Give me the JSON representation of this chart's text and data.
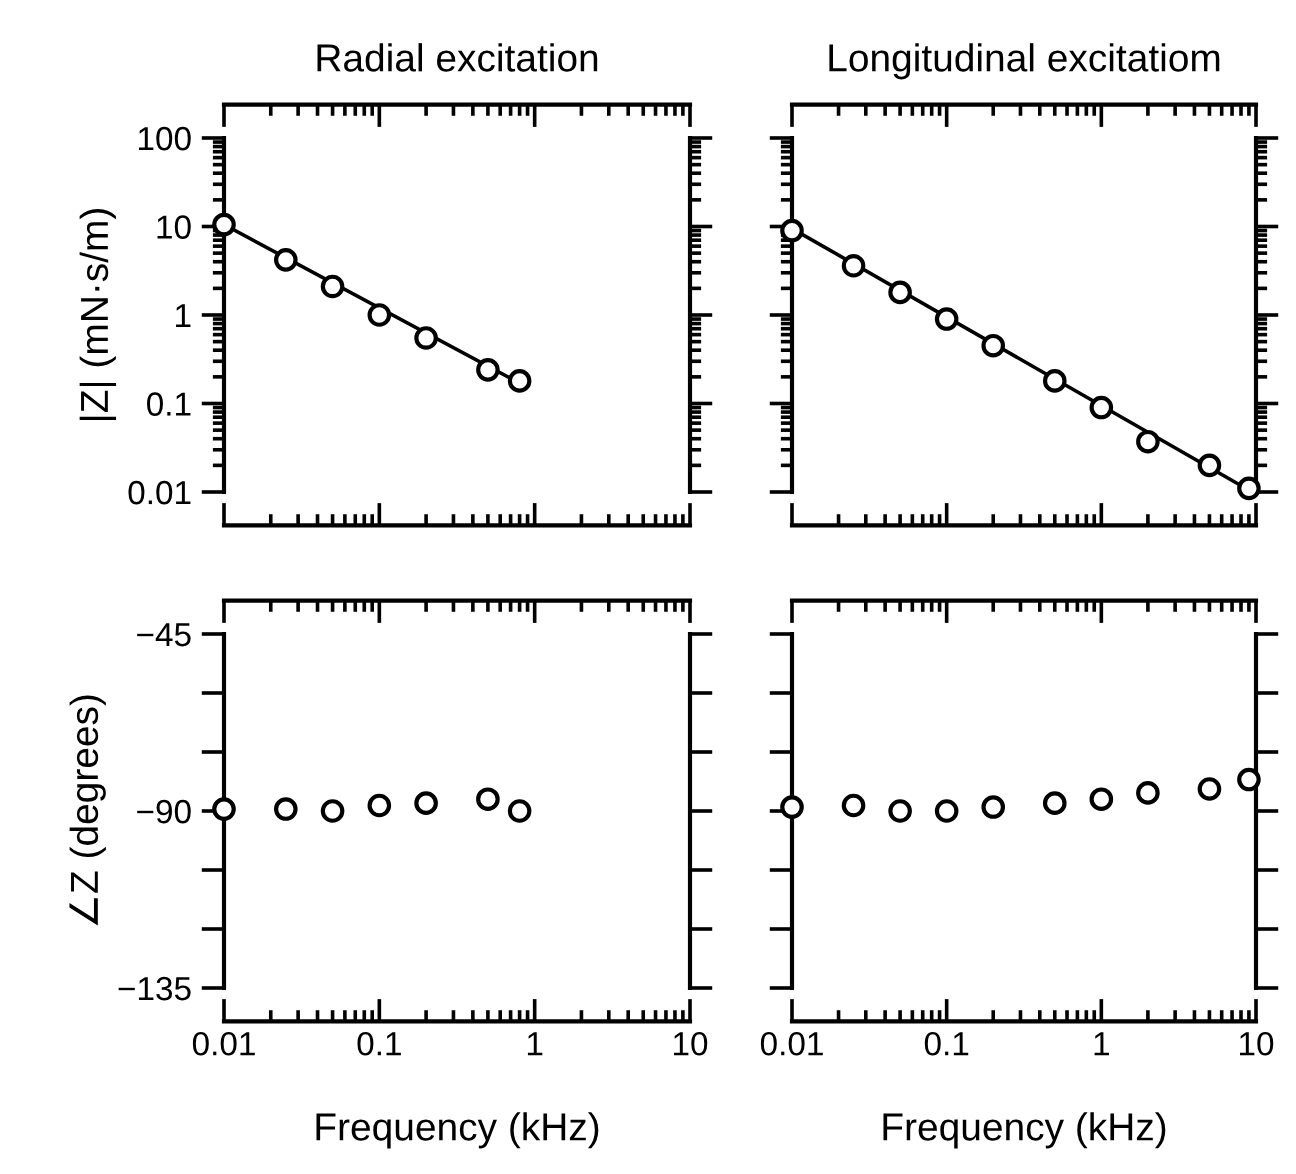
{
  "chart_data": [
    {
      "type": "scatter",
      "title": "Radial excitation",
      "ylabel": "|Z| (mN·s/m)",
      "log": "xy",
      "marker": "circle",
      "tick_labels": "y",
      "xlim": [
        0.01,
        10
      ],
      "xticks": [
        0.01,
        0.1,
        1,
        10
      ],
      "ylim": [
        0.01,
        100
      ],
      "yticks": [
        0.01,
        0.1,
        1,
        10,
        100
      ],
      "series": [
        {
          "type": "scatter",
          "color": "#000000",
          "x": [
            0.01,
            0.025,
            0.05,
            0.1,
            0.2,
            0.5,
            0.8
          ],
          "values": [
            10.5,
            4.2,
            2.1,
            1.0,
            0.55,
            0.24,
            0.18
          ]
        },
        {
          "type": "line",
          "marker": "none",
          "color": "#000000",
          "x": [
            0.01,
            0.8
          ],
          "values": [
            10.5,
            0.17
          ]
        }
      ]
    },
    {
      "type": "scatter",
      "title": "Longitudinal excitatiom",
      "log": "xy",
      "marker": "circle",
      "tick_labels": false,
      "xlim": [
        0.01,
        10
      ],
      "xticks": [
        0.01,
        0.1,
        1,
        10
      ],
      "ylim": [
        0.01,
        100
      ],
      "yticks": [
        0.01,
        0.1,
        1,
        10,
        100
      ],
      "series": [
        {
          "type": "scatter",
          "color": "#000000",
          "x": [
            0.01,
            0.025,
            0.05,
            0.1,
            0.2,
            0.5,
            1,
            2,
            5,
            9
          ],
          "values": [
            9,
            3.6,
            1.8,
            0.9,
            0.45,
            0.18,
            0.09,
            0.037,
            0.02,
            0.011
          ]
        },
        {
          "type": "line",
          "marker": "none",
          "color": "#000000",
          "x": [
            0.01,
            9
          ],
          "values": [
            9.5,
            0.0105
          ]
        }
      ]
    },
    {
      "type": "scatter",
      "xlabel": "Frequency (kHz)",
      "ylabel": "∠Z (degrees)",
      "log": "x",
      "marker": "circle",
      "xlim": [
        0.01,
        10
      ],
      "xticks": [
        0.01,
        0.1,
        1,
        10
      ],
      "ylim": [
        -135,
        -45
      ],
      "yticks": [
        {
          "value": -135,
          "label": "−135"
        },
        {
          "value": -120,
          "label": null
        },
        {
          "value": -105,
          "label": null
        },
        {
          "value": -90,
          "label": "−90"
        },
        {
          "value": -75,
          "label": null
        },
        {
          "value": -60,
          "label": null
        },
        {
          "value": -45,
          "label": "−45"
        }
      ],
      "series": [
        {
          "type": "scatter",
          "color": "#000000",
          "x": [
            0.01,
            0.025,
            0.05,
            0.1,
            0.2,
            0.5,
            0.8
          ],
          "values": [
            -89.5,
            -89.5,
            -90,
            -88.6,
            -88,
            -87,
            -90
          ]
        }
      ]
    },
    {
      "type": "scatter",
      "xlabel": "Frequency (kHz)",
      "log": "x",
      "marker": "circle",
      "tick_labels": "x",
      "xlim": [
        0.01,
        10
      ],
      "xticks": [
        0.01,
        0.1,
        1,
        10
      ],
      "ylim": [
        -135,
        -45
      ],
      "yticks": [
        {
          "value": -135,
          "label": null
        },
        {
          "value": -120,
          "label": null
        },
        {
          "value": -105,
          "label": null
        },
        {
          "value": -90,
          "label": null
        },
        {
          "value": -75,
          "label": null
        },
        {
          "value": -60,
          "label": null
        },
        {
          "value": -45,
          "label": null
        }
      ],
      "series": [
        {
          "type": "scatter",
          "color": "#000000",
          "x": [
            0.01,
            0.025,
            0.05,
            0.1,
            0.2,
            0.5,
            1,
            2,
            5,
            9
          ],
          "values": [
            -89,
            -88.6,
            -90,
            -90,
            -89,
            -88,
            -87,
            -85.4,
            -84.4,
            -82
          ]
        }
      ]
    }
  ]
}
